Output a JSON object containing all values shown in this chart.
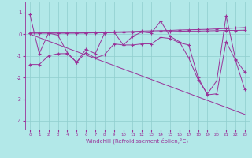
{
  "background_color": "#b2e8e8",
  "grid_color": "#8fcece",
  "line_color": "#993399",
  "xlim": [
    -0.5,
    23.5
  ],
  "ylim": [
    -4.4,
    1.5
  ],
  "yticks": [
    1,
    0,
    -1,
    -2,
    -3,
    -4
  ],
  "xticks": [
    0,
    1,
    2,
    3,
    4,
    5,
    6,
    7,
    8,
    9,
    10,
    11,
    12,
    13,
    14,
    15,
    16,
    17,
    18,
    19,
    20,
    21,
    22,
    23
  ],
  "xlabel": "Windchill (Refroidissement éolien,°C)",
  "line_straight": {
    "x": [
      0,
      23
    ],
    "y": [
      0.0,
      -3.7
    ]
  },
  "line_zigzag": [
    0.9,
    -0.9,
    0.05,
    -0.05,
    -0.85,
    -1.3,
    -0.7,
    -0.9,
    0.05,
    0.1,
    -0.5,
    -0.1,
    0.1,
    0.05,
    0.6,
    -0.1,
    -0.35,
    -1.1,
    -2.1,
    -2.75,
    -2.15,
    0.85,
    -1.15,
    -1.75
  ],
  "line_flat1": [
    0.05,
    0.05,
    0.05,
    0.05,
    0.05,
    0.05,
    0.06,
    0.07,
    0.08,
    0.1,
    0.11,
    0.12,
    0.14,
    0.15,
    0.16,
    0.17,
    0.19,
    0.2,
    0.21,
    0.22,
    0.24,
    0.26,
    0.28,
    0.3
  ],
  "line_flat2": [
    0.05,
    0.05,
    0.05,
    0.05,
    0.05,
    0.05,
    0.05,
    0.06,
    0.06,
    0.07,
    0.08,
    0.09,
    0.1,
    0.1,
    0.11,
    0.12,
    0.13,
    0.14,
    0.14,
    0.15,
    0.16,
    0.17,
    0.17,
    0.18
  ],
  "line_mid": [
    -1.4,
    -1.4,
    -1.0,
    -0.9,
    -0.9,
    -1.3,
    -0.85,
    -1.1,
    -0.95,
    -0.45,
    -0.5,
    -0.5,
    -0.45,
    -0.45,
    -0.15,
    -0.2,
    -0.4,
    -0.5,
    -2.0,
    -2.8,
    -2.75,
    -0.35,
    -1.2,
    -2.55
  ]
}
